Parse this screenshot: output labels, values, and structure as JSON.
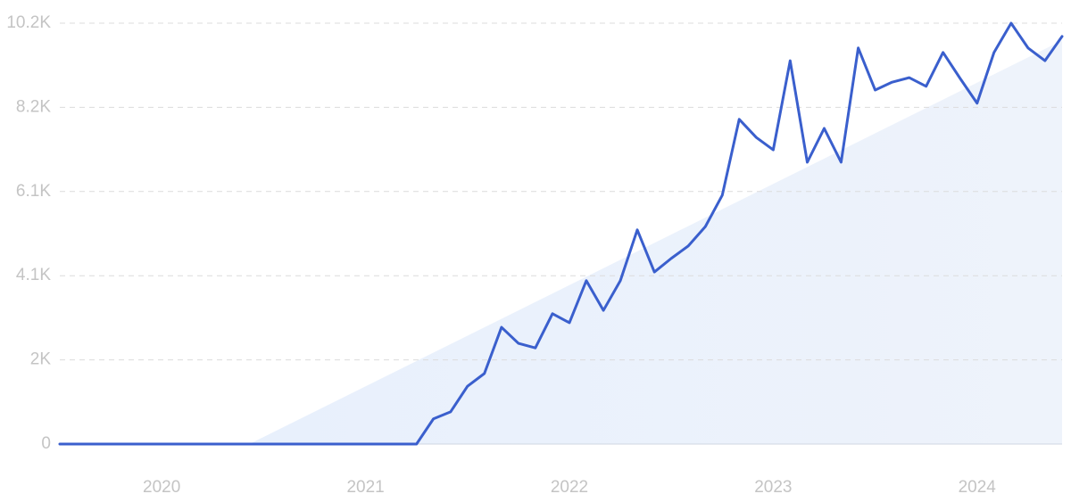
{
  "chart_data": {
    "type": "line",
    "x": [
      2019.5,
      2019.583,
      2019.667,
      2019.75,
      2019.833,
      2019.917,
      2020,
      2020.083,
      2020.167,
      2020.25,
      2020.333,
      2020.417,
      2020.5,
      2020.583,
      2020.667,
      2020.75,
      2020.833,
      2020.917,
      2021,
      2021.083,
      2021.167,
      2021.25,
      2021.333,
      2021.417,
      2021.5,
      2021.583,
      2021.667,
      2021.75,
      2021.833,
      2021.917,
      2022,
      2022.083,
      2022.167,
      2022.25,
      2022.333,
      2022.417,
      2022.5,
      2022.583,
      2022.667,
      2022.75,
      2022.833,
      2022.917,
      2023,
      2023.083,
      2023.167,
      2023.25,
      2023.333,
      2023.417,
      2023.5,
      2023.583,
      2023.667,
      2023.75,
      2023.833,
      2023.917,
      2024,
      2024.083,
      2024.167,
      2024.25,
      2024.333,
      2024.417
    ],
    "series": [
      {
        "color": "#3a5fcd",
        "values": [
          0,
          0,
          0,
          0,
          0,
          0,
          0,
          0,
          0,
          0,
          0,
          0,
          0,
          0,
          0,
          0,
          0,
          0,
          0,
          0,
          0,
          0,
          610,
          780,
          1400,
          1710,
          2830,
          2440,
          2330,
          3160,
          2940,
          3960,
          3240,
          3960,
          5190,
          4170,
          4500,
          4800,
          5270,
          6030,
          7870,
          7430,
          7130,
          9290,
          6830,
          7650,
          6830,
          9600,
          8580,
          8770,
          8880,
          8670,
          9490,
          8860,
          8260,
          9490,
          10200,
          9600,
          9290,
          9880
        ]
      }
    ],
    "trend": {
      "color": "#e4eefb",
      "x": [
        2020.43,
        2024.417
      ],
      "values": [
        0,
        9780
      ]
    },
    "xlim": [
      2019.5,
      2024.417
    ],
    "xticks": [
      2020,
      2021,
      2022,
      2023,
      2024
    ],
    "ylim": [
      0,
      10200
    ],
    "yticks": [
      0,
      {
        "value": 2040,
        "label": "2K"
      },
      {
        "value": 4080,
        "label": "4.1K"
      },
      {
        "value": 6120,
        "label": "6.1K"
      },
      {
        "value": 8160,
        "label": "8.2K"
      },
      {
        "value": 10200,
        "label": "10.2K"
      }
    ],
    "grid": true
  }
}
